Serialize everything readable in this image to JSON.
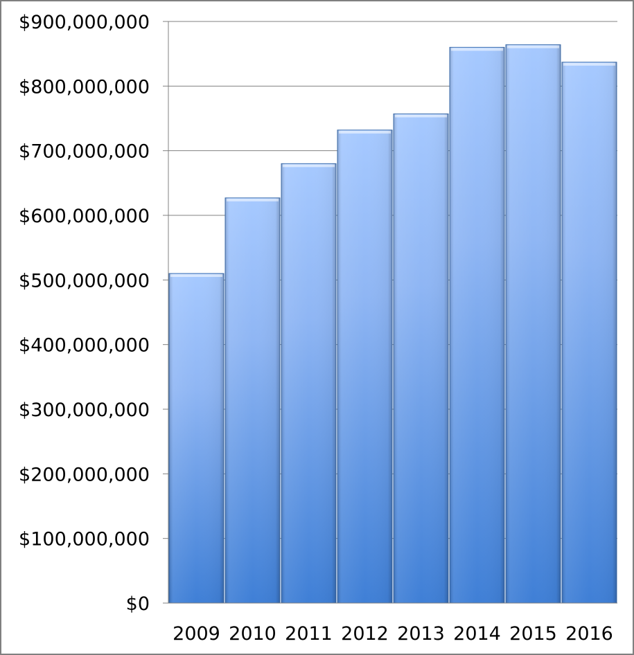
{
  "chart_data": {
    "type": "bar",
    "title": "",
    "xlabel": "",
    "ylabel": "",
    "categories": [
      "2009",
      "2010",
      "2011",
      "2012",
      "2013",
      "2014",
      "2015",
      "2016"
    ],
    "values": [
      510000000,
      627000000,
      680000000,
      732000000,
      757000000,
      860000000,
      864000000,
      837000000
    ],
    "ylim": [
      0,
      900000000
    ],
    "yticks": [
      0,
      100000000,
      200000000,
      300000000,
      400000000,
      500000000,
      600000000,
      700000000,
      800000000,
      900000000
    ],
    "ytick_labels": [
      "$0",
      "$100,000,000",
      "$200,000,000",
      "$300,000,000",
      "$400,000,000",
      "$500,000,000",
      "$600,000,000",
      "$700,000,000",
      "$800,000,000",
      "$900,000,000"
    ],
    "grid": true,
    "legend": "none",
    "colors": {
      "bar_top": "#a6c9ff",
      "bar_mid": "#8fb6f4",
      "bar_bottom": "#3f7fd6",
      "bar_edge": "#3d6fb0",
      "grid": "#808080",
      "axis": "#808080"
    }
  }
}
